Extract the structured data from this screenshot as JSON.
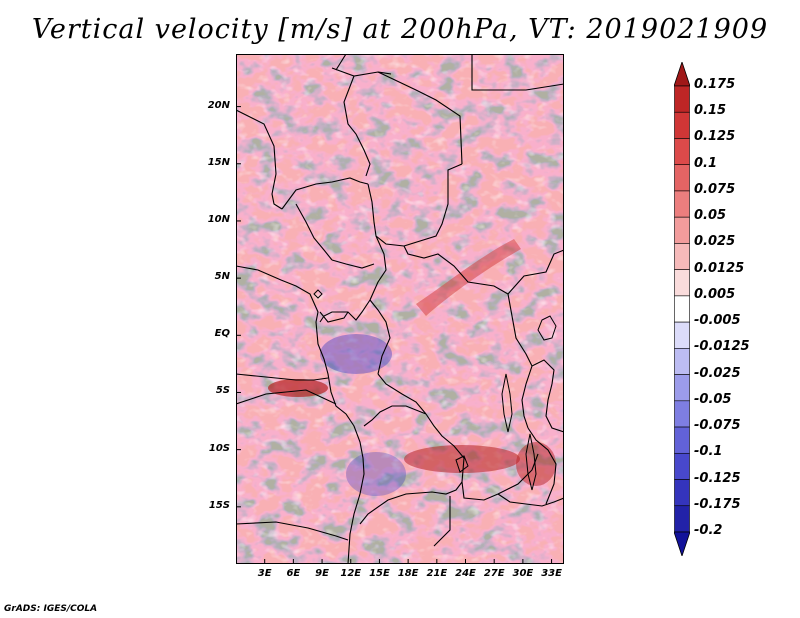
{
  "title": "Vertical velocity [m/s] at 200hPa, VT: 2019021909",
  "credit": "GrADS: IGES/COLA",
  "map": {
    "lat_labels": [
      "20N",
      "15N",
      "10N",
      "5N",
      "EQ",
      "5S",
      "10S",
      "15S"
    ],
    "lat_values": [
      20,
      15,
      10,
      5,
      0,
      -5,
      -10,
      -15
    ],
    "lon_labels": [
      "3E",
      "6E",
      "9E",
      "12E",
      "15E",
      "18E",
      "21E",
      "24E",
      "27E",
      "30E",
      "33E"
    ],
    "lon_values": [
      3,
      6,
      9,
      12,
      15,
      18,
      21,
      24,
      27,
      30,
      33
    ],
    "lat_range": [
      -20,
      24.6
    ],
    "lon_range": [
      0,
      34.3
    ],
    "field": {
      "variable": "Vertical velocity",
      "units": "m/s",
      "level": "200hPa",
      "valid_time": "2019021909"
    }
  },
  "colorbar": {
    "labels": [
      "0.175",
      "0.15",
      "0.125",
      "0.1",
      "0.075",
      "0.05",
      "0.025",
      "0.0125",
      "0.005",
      "-0.005",
      "-0.0125",
      "-0.025",
      "-0.05",
      "-0.075",
      "-0.1",
      "-0.125",
      "-0.175",
      "-0.2"
    ],
    "colors": [
      "#a01818",
      "#be2626",
      "#d03636",
      "#dc4a4a",
      "#e46464",
      "#ec7e7e",
      "#f29c9c",
      "#f6baba",
      "#fadcdc",
      "#ffffff",
      "#dcdcfa",
      "#bcbcf2",
      "#9c9cea",
      "#7e7ee2",
      "#6262d8",
      "#4848cc",
      "#3434bc",
      "#2222a8",
      "#12129a"
    ],
    "tip_top_color": "#a01818",
    "tip_bottom_color": "#12129a"
  }
}
